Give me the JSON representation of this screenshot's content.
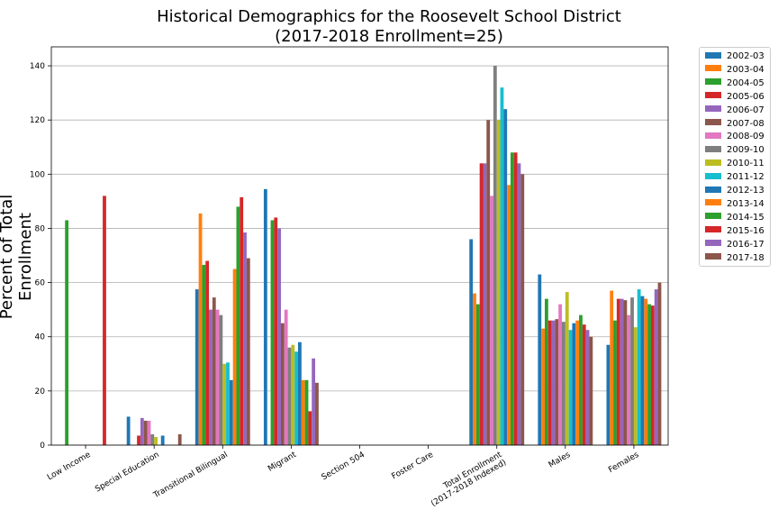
{
  "chart_data": {
    "type": "bar",
    "title": "Historical Demographics for the Roosevelt School District",
    "subtitle": "(2017-2018 Enrollment=25)",
    "xlabel": "",
    "ylabel": "Percent of Total Enrollment",
    "ylim": [
      0,
      147
    ],
    "yticks": [
      0,
      20,
      40,
      60,
      80,
      100,
      120,
      140
    ],
    "grid": "y",
    "legend_position": "outside-right",
    "categories": [
      "Low Income",
      "Special Education",
      "Transitional Bilingual",
      "Migrant",
      "Section 504",
      "Foster Care",
      "Total Enrollment\n(2017-2018 Indexed)",
      "Males",
      "Females"
    ],
    "series": [
      {
        "name": "2002-03",
        "color": "#1f77b4",
        "values": [
          0,
          10.5,
          57.5,
          94.5,
          0,
          0,
          76,
          63,
          37
        ]
      },
      {
        "name": "2003-04",
        "color": "#ff7f0e",
        "values": [
          0,
          0,
          85.5,
          0,
          0,
          0,
          56,
          43,
          57
        ]
      },
      {
        "name": "2004-05",
        "color": "#2ca02c",
        "values": [
          83,
          0,
          66.5,
          83,
          0,
          0,
          52,
          54,
          46
        ]
      },
      {
        "name": "2005-06",
        "color": "#d62728",
        "values": [
          0,
          3.5,
          68,
          84,
          0,
          0,
          104,
          46,
          54
        ]
      },
      {
        "name": "2006-07",
        "color": "#9467bd",
        "values": [
          0,
          10,
          50,
          80,
          0,
          0,
          104,
          46,
          54
        ]
      },
      {
        "name": "2007-08",
        "color": "#8c564b",
        "values": [
          0,
          9,
          54.5,
          45,
          0,
          0,
          120,
          46.5,
          53.5
        ]
      },
      {
        "name": "2008-09",
        "color": "#e377c2",
        "values": [
          0,
          9,
          50,
          50,
          0,
          0,
          92,
          52,
          48
        ]
      },
      {
        "name": "2009-10",
        "color": "#7f7f7f",
        "values": [
          0,
          4,
          48,
          36,
          0,
          0,
          140,
          45.5,
          54.5
        ]
      },
      {
        "name": "2010-11",
        "color": "#bcbd22",
        "values": [
          0,
          3,
          30,
          37,
          0,
          0,
          120,
          56.5,
          43.5
        ]
      },
      {
        "name": "2011-12",
        "color": "#17becf",
        "values": [
          0,
          0,
          30.5,
          34.5,
          0,
          0,
          132,
          42.5,
          57.5
        ]
      },
      {
        "name": "2012-13",
        "color": "#1f77b4",
        "values": [
          0,
          3.5,
          24,
          38,
          0,
          0,
          124,
          45,
          55
        ]
      },
      {
        "name": "2013-14",
        "color": "#ff7f0e",
        "values": [
          0,
          0,
          65,
          24,
          0,
          0,
          96,
          46,
          54
        ]
      },
      {
        "name": "2014-15",
        "color": "#2ca02c",
        "values": [
          0,
          0,
          88,
          24,
          0,
          0,
          108,
          48,
          52
        ]
      },
      {
        "name": "2015-16",
        "color": "#d62728",
        "values": [
          92,
          0,
          91.5,
          12.5,
          0,
          0,
          108,
          44.5,
          51.5
        ]
      },
      {
        "name": "2016-17",
        "color": "#9467bd",
        "values": [
          0,
          0,
          78.5,
          32,
          0,
          0,
          104,
          42.5,
          57.5
        ]
      },
      {
        "name": "2017-18",
        "color": "#8c564b",
        "values": [
          0,
          4,
          69,
          23,
          0,
          0,
          100,
          40,
          60
        ]
      }
    ]
  }
}
